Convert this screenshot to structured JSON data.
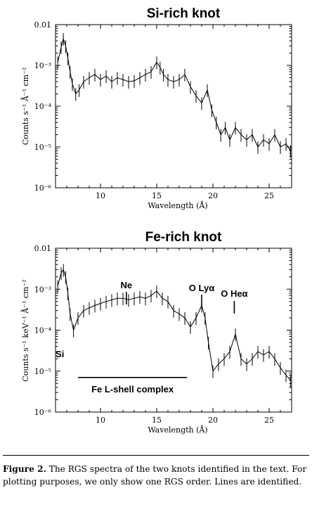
{
  "chart_data": [
    {
      "type": "line",
      "title": "Si-rich knot",
      "xlabel": "Wavelength (Å)",
      "ylabel": "Counts s⁻¹ Å⁻¹ cm⁻²",
      "xlim": [
        6,
        27
      ],
      "ylim": [
        1e-06,
        0.01
      ],
      "yscale": "log",
      "xticks": [
        10,
        15,
        20,
        25
      ],
      "yticks": [
        1e-06,
        1e-05,
        0.0001,
        0.001,
        0.01
      ],
      "yticklabels": [
        "10⁻⁶",
        "10⁻⁵",
        "10⁻⁴",
        "10⁻³",
        "0.01"
      ],
      "series": [
        {
          "x": [
            6.2,
            6.5,
            6.7,
            6.9,
            7.1,
            7.3,
            7.5,
            7.8,
            8.1,
            8.5,
            9.0,
            9.5,
            10.0,
            10.5,
            11.0,
            11.5,
            12.0,
            12.5,
            13.0,
            13.5,
            14.0,
            14.5,
            15.0,
            15.3,
            15.6,
            16.0,
            16.5,
            17.0,
            17.5,
            18.0,
            18.5,
            19.0,
            19.5,
            19.9,
            20.3,
            20.7,
            21.1,
            21.5,
            22.0,
            22.5,
            23.0,
            23.5,
            24.0,
            24.5,
            25.0,
            25.5,
            26.0,
            26.5,
            26.9
          ],
          "y": [
            0.0012,
            0.0028,
            0.0045,
            0.003,
            0.0015,
            0.0007,
            0.00035,
            0.0002,
            0.00025,
            0.0004,
            0.0005,
            0.0006,
            0.00045,
            0.00055,
            0.0004,
            0.0005,
            0.00045,
            0.0004,
            0.00042,
            0.0005,
            0.0006,
            0.0007,
            0.0012,
            0.0009,
            0.0006,
            0.00045,
            0.0004,
            0.00045,
            0.0006,
            0.0003,
            0.00018,
            0.00012,
            0.00025,
            8e-05,
            4e-05,
            2e-05,
            3e-05,
            1.5e-05,
            3e-05,
            2e-05,
            1.5e-05,
            2e-05,
            1e-05,
            1.5e-05,
            1.2e-05,
            2e-05,
            1e-05,
            1.2e-05,
            8e-06
          ]
        }
      ]
    },
    {
      "type": "line",
      "title": "Fe-rich knot",
      "xlabel": "Wavelength (Å)",
      "ylabel": "Counts s⁻¹ keV⁻¹ Å⁻¹ cm⁻²",
      "xlim": [
        6,
        27
      ],
      "ylim": [
        1e-06,
        0.01
      ],
      "yscale": "log",
      "xticks": [
        10,
        15,
        20,
        25
      ],
      "yticks": [
        1e-06,
        1e-05,
        0.0001,
        0.001,
        0.01
      ],
      "yticklabels": [
        "10⁻⁶",
        "10⁻⁵",
        "10⁻⁴",
        "10⁻³",
        "0.01"
      ],
      "series": [
        {
          "x": [
            6.2,
            6.5,
            6.7,
            6.9,
            7.1,
            7.3,
            7.6,
            8.0,
            8.5,
            9.0,
            9.5,
            10.0,
            10.5,
            11.0,
            11.5,
            12.0,
            12.5,
            13.0,
            13.5,
            14.0,
            14.5,
            15.0,
            15.5,
            16.0,
            16.5,
            17.0,
            17.5,
            18.0,
            18.5,
            19.0,
            19.3,
            19.6,
            20.0,
            20.5,
            21.0,
            21.5,
            22.0,
            22.5,
            23.0,
            23.5,
            24.0,
            24.5,
            25.0,
            25.5,
            26.0,
            26.5,
            26.9
          ],
          "y": [
            0.0012,
            0.0025,
            0.003,
            0.002,
            0.0008,
            0.00025,
            0.0001,
            0.0002,
            0.0003,
            0.00035,
            0.0004,
            0.00045,
            0.0005,
            0.00055,
            0.0006,
            0.0006,
            0.00055,
            0.0006,
            0.00065,
            0.0006,
            0.0007,
            0.0009,
            0.0006,
            0.0005,
            0.0003,
            0.00025,
            0.0002,
            0.00012,
            0.0002,
            0.0004,
            0.0002,
            5e-05,
            1e-05,
            1.5e-05,
            2e-05,
            3e-05,
            8e-05,
            2e-05,
            1.5e-05,
            2e-05,
            3e-05,
            2.5e-05,
            3e-05,
            2e-05,
            1.2e-05,
            8e-06,
            6e-06
          ]
        }
      ],
      "annotations": [
        {
          "text": "Ne",
          "x": 12.3
        },
        {
          "text": "O Lyα",
          "x": 19.0
        },
        {
          "text": "O Heα",
          "x": 21.9
        },
        {
          "text": "Si",
          "x": 6.7
        },
        {
          "text": "Fe L-shell complex",
          "x_range": [
            8.0,
            17.7
          ],
          "y": 7e-06
        }
      ]
    }
  ],
  "caption": {
    "label": "Figure 2.",
    "text": "The RGS spectra of the two knots identified in the text. For plotting purposes, we only show one RGS order. Lines are identified."
  }
}
